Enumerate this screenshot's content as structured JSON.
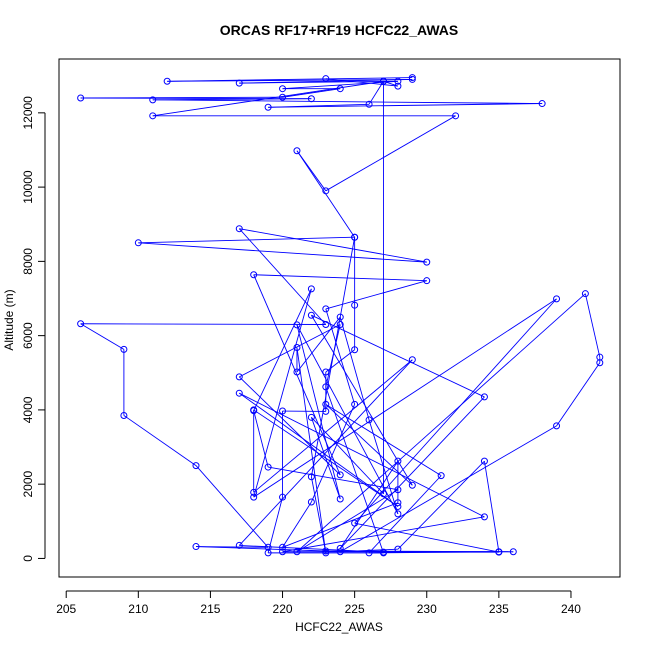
{
  "chart_data": {
    "type": "line",
    "title": "ORCAS RF17+RF19 HCFC22_AWAS",
    "xlabel": "HCFC22_AWAS",
    "ylabel": "Altitude (m)",
    "xlim": [
      204.5,
      243.4
    ],
    "ylim": [
      -500,
      13450
    ],
    "xticks": [
      205,
      210,
      215,
      220,
      225,
      230,
      235,
      240
    ],
    "yticks": [
      0,
      2000,
      4000,
      6000,
      8000,
      10000,
      12000
    ],
    "grid": false,
    "line_color": "#0000ff",
    "marker": "open-circle",
    "series": [
      {
        "values": [
          {
            "x": 229,
            "y": 12950
          },
          {
            "x": 212,
            "y": 12850
          },
          {
            "x": 229,
            "y": 12900
          },
          {
            "x": 217,
            "y": 12800
          },
          {
            "x": 228,
            "y": 12850
          },
          {
            "x": 220,
            "y": 12650
          },
          {
            "x": 224,
            "y": 12650
          },
          {
            "x": 220,
            "y": 12420
          },
          {
            "x": 206,
            "y": 12400
          },
          {
            "x": 222,
            "y": 12380
          },
          {
            "x": 211,
            "y": 12350
          },
          {
            "x": 238,
            "y": 12250
          },
          {
            "x": 219,
            "y": 12150
          },
          {
            "x": 226,
            "y": 12230
          },
          {
            "x": 227,
            "y": 12850
          },
          {
            "x": 211,
            "y": 11920
          },
          {
            "x": 232,
            "y": 11920
          },
          {
            "x": 223,
            "y": 9900
          },
          {
            "x": 221,
            "y": 10980
          },
          {
            "x": 225,
            "y": 8650
          },
          {
            "x": 210,
            "y": 8500
          },
          {
            "x": 230,
            "y": 7980
          },
          {
            "x": 217,
            "y": 8880
          },
          {
            "x": 223,
            "y": 6300
          },
          {
            "x": 206,
            "y": 6320
          },
          {
            "x": 209,
            "y": 5630
          },
          {
            "x": 209,
            "y": 3850
          },
          {
            "x": 214,
            "y": 2500
          },
          {
            "x": 219,
            "y": 300
          },
          {
            "x": 214,
            "y": 320
          },
          {
            "x": 223,
            "y": 200
          },
          {
            "x": 236,
            "y": 180
          },
          {
            "x": 220,
            "y": 180
          },
          {
            "x": 234,
            "y": 1120
          },
          {
            "x": 217,
            "y": 4450
          },
          {
            "x": 228,
            "y": 1400
          },
          {
            "x": 218,
            "y": 4000
          },
          {
            "x": 218,
            "y": 1780
          },
          {
            "x": 229,
            "y": 5350
          },
          {
            "x": 217,
            "y": 350
          },
          {
            "x": 227,
            "y": 170
          },
          {
            "x": 235,
            "y": 170
          },
          {
            "x": 225,
            "y": 950
          },
          {
            "x": 239,
            "y": 6990
          },
          {
            "x": 218,
            "y": 1650
          },
          {
            "x": 222,
            "y": 7260
          },
          {
            "x": 218,
            "y": 3980
          },
          {
            "x": 219,
            "y": 2460
          },
          {
            "x": 228,
            "y": 1850
          },
          {
            "x": 221,
            "y": 180
          },
          {
            "x": 241,
            "y": 7130
          },
          {
            "x": 242,
            "y": 5420
          },
          {
            "x": 242,
            "y": 5270
          },
          {
            "x": 239,
            "y": 3570
          },
          {
            "x": 224,
            "y": 180
          },
          {
            "x": 228,
            "y": 250
          },
          {
            "x": 234,
            "y": 2620
          },
          {
            "x": 235,
            "y": 180
          },
          {
            "x": 226,
            "y": 150
          },
          {
            "x": 231,
            "y": 2230
          },
          {
            "x": 223,
            "y": 4150
          },
          {
            "x": 229,
            "y": 1970
          },
          {
            "x": 222,
            "y": 6550
          },
          {
            "x": 234,
            "y": 4350
          },
          {
            "x": 224,
            "y": 270
          },
          {
            "x": 228,
            "y": 2620
          },
          {
            "x": 228,
            "y": 1500
          },
          {
            "x": 220,
            "y": 300
          },
          {
            "x": 222,
            "y": 1520
          },
          {
            "x": 225,
            "y": 4150
          },
          {
            "x": 223,
            "y": 6720
          },
          {
            "x": 230,
            "y": 7480
          },
          {
            "x": 218,
            "y": 7640
          },
          {
            "x": 224,
            "y": 2250
          },
          {
            "x": 217,
            "y": 4890
          },
          {
            "x": 224,
            "y": 6300
          },
          {
            "x": 223,
            "y": 4620
          },
          {
            "x": 227,
            "y": 150
          },
          {
            "x": 219,
            "y": 150
          },
          {
            "x": 220,
            "y": 1650
          },
          {
            "x": 220,
            "y": 3970
          },
          {
            "x": 223,
            "y": 3960
          },
          {
            "x": 223,
            "y": 5020
          },
          {
            "x": 225,
            "y": 5620
          },
          {
            "x": 225,
            "y": 6820
          },
          {
            "x": 225,
            "y": 8650
          },
          {
            "x": 222,
            "y": 2200
          },
          {
            "x": 223,
            "y": 150
          },
          {
            "x": 221,
            "y": 5680
          },
          {
            "x": 221,
            "y": 5020
          },
          {
            "x": 224,
            "y": 6500
          },
          {
            "x": 226,
            "y": 3730
          },
          {
            "x": 228,
            "y": 1200
          },
          {
            "x": 221,
            "y": 6290
          },
          {
            "x": 224,
            "y": 1600
          },
          {
            "x": 222,
            "y": 3800
          },
          {
            "x": 227,
            "y": 1740
          },
          {
            "x": 227,
            "y": 12850
          },
          {
            "x": 228,
            "y": 12720
          },
          {
            "x": 223,
            "y": 12920
          }
        ]
      }
    ]
  }
}
